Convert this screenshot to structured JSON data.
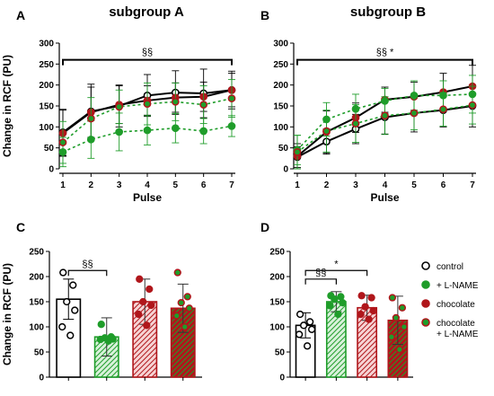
{
  "figure": {
    "colors": {
      "control": "#000000",
      "lname": "#1f9d2a",
      "chocolate": "#b0161b",
      "choc_lname": "#b0161b",
      "hatch_red_bg": "#f6d3d4",
      "hatch_green_bg": "#d8f1da"
    },
    "legend": {
      "items": [
        {
          "label": "control",
          "marker": "open-black"
        },
        {
          "label": "+ L-NAME",
          "marker": "green"
        },
        {
          "label": "chocolate",
          "marker": "red"
        },
        {
          "label": "chocolate",
          "label2": "+ L-NAME",
          "marker": "red-green"
        }
      ]
    }
  },
  "chart_data": [
    {
      "panel": "A",
      "title": "subgroup A",
      "type": "line",
      "xlabel": "Pulse",
      "ylabel": "Change in RCF (PU)",
      "x": [
        1,
        2,
        3,
        4,
        5,
        6,
        7
      ],
      "ylim": [
        0,
        300
      ],
      "yticks": [
        0,
        50,
        100,
        150,
        200,
        250,
        300
      ],
      "significance": {
        "label": "§§",
        "x_from": 1,
        "x_to": 7,
        "y": 260
      },
      "series": [
        {
          "key": "control",
          "values": [
            87,
            137,
            150,
            175,
            182,
            180,
            188
          ],
          "err": [
            55,
            65,
            50,
            50,
            52,
            58,
            45
          ]
        },
        {
          "key": "chocolate",
          "values": [
            85,
            135,
            153,
            163,
            170,
            172,
            188
          ],
          "err": [
            55,
            60,
            45,
            35,
            35,
            35,
            40
          ]
        },
        {
          "key": "lname",
          "values": [
            40,
            70,
            88,
            92,
            97,
            90,
            102
          ],
          "err": [
            35,
            45,
            45,
            35,
            35,
            30,
            25
          ]
        },
        {
          "key": "choc_lname",
          "values": [
            63,
            120,
            148,
            155,
            160,
            153,
            168
          ],
          "err": [
            50,
            50,
            40,
            50,
            45,
            45,
            45
          ]
        }
      ]
    },
    {
      "panel": "B",
      "title": "subgroup B",
      "type": "line",
      "xlabel": "Pulse",
      "ylabel": "",
      "x": [
        1,
        2,
        3,
        4,
        5,
        6,
        7
      ],
      "ylim": [
        0,
        300
      ],
      "yticks": [
        0,
        50,
        100,
        150,
        200,
        250,
        300
      ],
      "significance": {
        "label": "§§ *",
        "x_from": 1,
        "x_to": 7,
        "y": 260
      },
      "series": [
        {
          "key": "control",
          "values": [
            28,
            65,
            95,
            123,
            133,
            140,
            150
          ],
          "err": [
            25,
            30,
            35,
            40,
            45,
            40,
            50
          ]
        },
        {
          "key": "chocolate",
          "values": [
            30,
            88,
            122,
            165,
            172,
            183,
            197
          ],
          "err": [
            30,
            50,
            35,
            30,
            35,
            45,
            50
          ]
        },
        {
          "key": "lname",
          "values": [
            45,
            118,
            143,
            162,
            175,
            175,
            178
          ],
          "err": [
            35,
            40,
            35,
            30,
            35,
            35,
            45
          ]
        },
        {
          "key": "choc_lname",
          "values": [
            40,
            90,
            108,
            127,
            133,
            142,
            152
          ],
          "err": [
            40,
            50,
            45,
            45,
            40,
            40,
            45
          ]
        }
      ]
    },
    {
      "panel": "C",
      "title": "",
      "type": "bar",
      "xlabel": "",
      "ylabel": "Change in RCF (PU)",
      "ylim": [
        0,
        250
      ],
      "yticks": [
        0,
        50,
        100,
        150,
        200,
        250
      ],
      "significance": [
        {
          "label": "§§",
          "from": 0,
          "to": 1,
          "y": 212
        }
      ],
      "bars": [
        {
          "key": "control",
          "value": 155,
          "err": 40,
          "points": [
            208,
            183,
            150,
            133,
            100,
            83
          ]
        },
        {
          "key": "lname",
          "value": 80,
          "err": 38,
          "points": [
            105,
            80,
            78,
            76,
            75,
            72
          ]
        },
        {
          "key": "chocolate",
          "value": 150,
          "err": 45,
          "points": [
            195,
            175,
            150,
            143,
            125,
            103
          ]
        },
        {
          "key": "choc_lname",
          "value": 137,
          "err": 48,
          "points": [
            208,
            160,
            148,
            137,
            122,
            100
          ]
        }
      ]
    },
    {
      "panel": "D",
      "title": "",
      "type": "bar",
      "xlabel": "",
      "ylabel": "",
      "ylim": [
        0,
        250
      ],
      "yticks": [
        0,
        50,
        100,
        150,
        200,
        250
      ],
      "significance": [
        {
          "label": "§§",
          "from": 0,
          "to": 1,
          "y": 195
        },
        {
          "label": "*",
          "from": 0,
          "to": 2,
          "y": 212
        }
      ],
      "bars": [
        {
          "key": "control",
          "value": 103,
          "err": 25,
          "points": [
            125,
            110,
            103,
            95,
            85,
            62
          ]
        },
        {
          "key": "lname",
          "value": 150,
          "err": 20,
          "points": [
            162,
            160,
            155,
            148,
            142,
            125
          ]
        },
        {
          "key": "chocolate",
          "value": 138,
          "err": 25,
          "points": [
            162,
            158,
            140,
            132,
            125,
            115
          ]
        },
        {
          "key": "choc_lname",
          "value": 113,
          "err": 48,
          "points": [
            158,
            138,
            118,
            100,
            80,
            55
          ]
        }
      ]
    }
  ]
}
